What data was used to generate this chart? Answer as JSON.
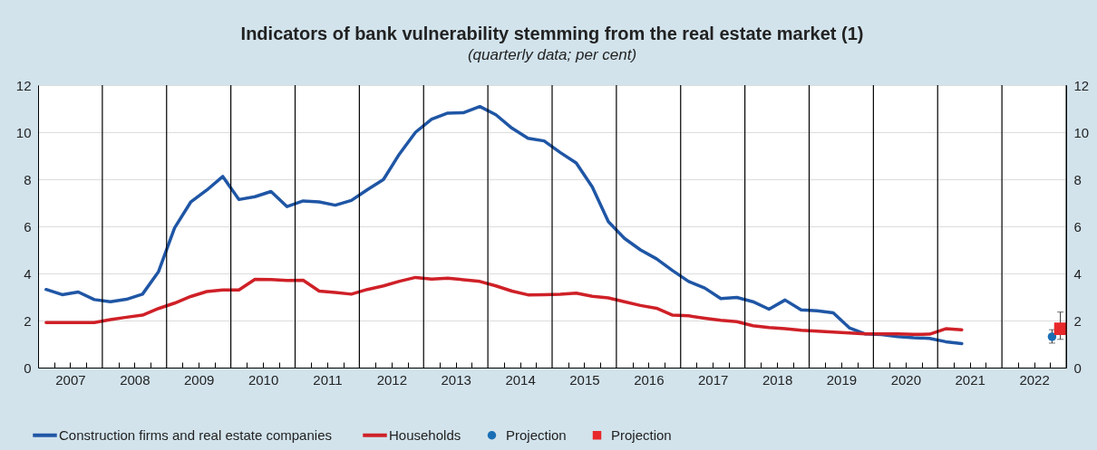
{
  "chart_data": {
    "type": "line",
    "title": "Indicators of bank vulnerability stemming from the real estate market (1)",
    "subtitle": "(quarterly data; per cent)",
    "x": [
      2007.125,
      2007.375,
      2007.625,
      2007.875,
      2008.125,
      2008.375,
      2008.625,
      2008.875,
      2009.125,
      2009.375,
      2009.625,
      2009.875,
      2010.125,
      2010.375,
      2010.625,
      2010.875,
      2011.125,
      2011.375,
      2011.625,
      2011.875,
      2012.125,
      2012.375,
      2012.625,
      2012.875,
      2013.125,
      2013.375,
      2013.625,
      2013.875,
      2014.125,
      2014.375,
      2014.625,
      2014.875,
      2015.125,
      2015.375,
      2015.625,
      2015.875,
      2016.125,
      2016.375,
      2016.625,
      2016.875,
      2017.125,
      2017.375,
      2017.625,
      2017.875,
      2018.125,
      2018.375,
      2018.625,
      2018.875,
      2019.125,
      2019.375,
      2019.625,
      2019.875,
      2020.125,
      2020.375,
      2020.625,
      2020.875,
      2021.125,
      2021.375
    ],
    "series": [
      {
        "name": "Construction firms and real estate companies",
        "color": "#1f56a5",
        "values": [
          3.32,
          3.1,
          3.21,
          2.89,
          2.8,
          2.9,
          3.12,
          4.08,
          5.94,
          7.03,
          7.54,
          8.12,
          7.14,
          7.26,
          7.48,
          6.84,
          7.08,
          7.04,
          6.9,
          7.1,
          7.56,
          7.99,
          9.08,
          10.0,
          10.55,
          10.81,
          10.83,
          11.09,
          10.74,
          10.17,
          9.74,
          9.63,
          9.14,
          8.69,
          7.67,
          6.2,
          5.49,
          5.0,
          4.62,
          4.12,
          3.66,
          3.38,
          2.93,
          2.98,
          2.8,
          2.48,
          2.87,
          2.45,
          2.41,
          2.33,
          1.69,
          1.43,
          1.4,
          1.32,
          1.27,
          1.24,
          1.1,
          1.02
        ]
      },
      {
        "name": "Households",
        "color": "#cf2027",
        "values": [
          1.91,
          1.91,
          1.91,
          1.91,
          2.04,
          2.14,
          2.23,
          2.51,
          2.74,
          3.02,
          3.23,
          3.3,
          3.3,
          3.75,
          3.74,
          3.7,
          3.71,
          3.25,
          3.19,
          3.12,
          3.32,
          3.47,
          3.67,
          3.83,
          3.76,
          3.8,
          3.73,
          3.66,
          3.47,
          3.25,
          3.09,
          3.1,
          3.12,
          3.16,
          3.03,
          2.96,
          2.8,
          2.64,
          2.52,
          2.23,
          2.2,
          2.1,
          2.01,
          1.95,
          1.78,
          1.7,
          1.65,
          1.59,
          1.55,
          1.51,
          1.47,
          1.43,
          1.43,
          1.43,
          1.41,
          1.42,
          1.65,
          1.61
        ]
      },
      {
        "name": "Projection",
        "type": "scatter",
        "marker": "circle",
        "color": "#1a6fb4",
        "x": [
          2022.78
        ],
        "values": [
          1.31
        ],
        "errors": [
          [
            1.04,
            1.61
          ]
        ]
      },
      {
        "name": "Projection",
        "type": "scatter",
        "marker": "square",
        "color": "#e8282b",
        "x": [
          2022.91
        ],
        "values": [
          1.65
        ],
        "errors": [
          [
            1.2,
            2.36
          ]
        ]
      }
    ],
    "xlim": [
      2007,
      2023
    ],
    "xticks": [
      {
        "value": 2007.25,
        "label": null
      },
      {
        "value": 2007.5,
        "label": "2007"
      },
      {
        "value": 2007.75,
        "label": null
      },
      {
        "value": 2008.25,
        "label": null
      },
      {
        "value": 2008.5,
        "label": "2008"
      },
      {
        "value": 2008.75,
        "label": null
      },
      {
        "value": 2009.25,
        "label": null
      },
      {
        "value": 2009.5,
        "label": "2009"
      },
      {
        "value": 2009.75,
        "label": null
      },
      {
        "value": 2010.25,
        "label": null
      },
      {
        "value": 2010.5,
        "label": "2010"
      },
      {
        "value": 2010.75,
        "label": null
      },
      {
        "value": 2011.25,
        "label": null
      },
      {
        "value": 2011.5,
        "label": "2011"
      },
      {
        "value": 2011.75,
        "label": null
      },
      {
        "value": 2012.25,
        "label": null
      },
      {
        "value": 2012.5,
        "label": "2012"
      },
      {
        "value": 2012.75,
        "label": null
      },
      {
        "value": 2013.25,
        "label": null
      },
      {
        "value": 2013.5,
        "label": "2013"
      },
      {
        "value": 2013.75,
        "label": null
      },
      {
        "value": 2014.25,
        "label": null
      },
      {
        "value": 2014.5,
        "label": "2014"
      },
      {
        "value": 2014.75,
        "label": null
      },
      {
        "value": 2015.25,
        "label": null
      },
      {
        "value": 2015.5,
        "label": "2015"
      },
      {
        "value": 2015.75,
        "label": null
      },
      {
        "value": 2016.25,
        "label": null
      },
      {
        "value": 2016.5,
        "label": "2016"
      },
      {
        "value": 2016.75,
        "label": null
      },
      {
        "value": 2017.25,
        "label": null
      },
      {
        "value": 2017.5,
        "label": "2017"
      },
      {
        "value": 2017.75,
        "label": null
      },
      {
        "value": 2018.25,
        "label": null
      },
      {
        "value": 2018.5,
        "label": "2018"
      },
      {
        "value": 2018.75,
        "label": null
      },
      {
        "value": 2019.25,
        "label": null
      },
      {
        "value": 2019.5,
        "label": "2019"
      },
      {
        "value": 2019.75,
        "label": null
      },
      {
        "value": 2020.25,
        "label": null
      },
      {
        "value": 2020.5,
        "label": "2020"
      },
      {
        "value": 2020.75,
        "label": null
      },
      {
        "value": 2021.25,
        "label": null
      },
      {
        "value": 2021.5,
        "label": "2021"
      },
      {
        "value": 2021.75,
        "label": null
      },
      {
        "value": 2022.25,
        "label": null
      },
      {
        "value": 2022.5,
        "label": "2022"
      },
      {
        "value": 2022.75,
        "label": null
      }
    ],
    "ylim": [
      0,
      12
    ],
    "yticks": [
      0,
      2,
      4,
      6,
      8,
      10,
      12
    ],
    "y2lim": [
      0,
      12
    ],
    "y2ticks": [
      0,
      2,
      4,
      6,
      8,
      10,
      12
    ],
    "ref_lines": [
      {
        "axis": "x",
        "value": 2008,
        "color": "#000000"
      },
      {
        "axis": "x",
        "value": 2009,
        "color": "#000000"
      },
      {
        "axis": "x",
        "value": 2010,
        "color": "#000000"
      },
      {
        "axis": "x",
        "value": 2011,
        "color": "#000000"
      },
      {
        "axis": "x",
        "value": 2012,
        "color": "#000000"
      },
      {
        "axis": "x",
        "value": 2013,
        "color": "#000000"
      },
      {
        "axis": "x",
        "value": 2014,
        "color": "#000000"
      },
      {
        "axis": "x",
        "value": 2015,
        "color": "#000000"
      },
      {
        "axis": "x",
        "value": 2016,
        "color": "#000000"
      },
      {
        "axis": "x",
        "value": 2017,
        "color": "#000000"
      },
      {
        "axis": "x",
        "value": 2018,
        "color": "#000000"
      },
      {
        "axis": "x",
        "value": 2019,
        "color": "#000000"
      },
      {
        "axis": "x",
        "value": 2020,
        "color": "#000000"
      },
      {
        "axis": "x",
        "value": 2021,
        "color": "#000000"
      },
      {
        "axis": "x",
        "value": 2022,
        "color": "#000000"
      }
    ],
    "grid": "y",
    "legend": "bottom",
    "line_style": "solid"
  }
}
